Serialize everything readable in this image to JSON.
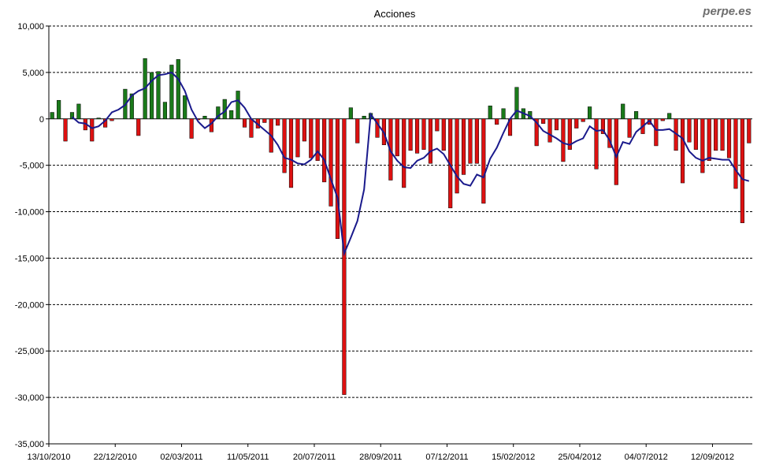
{
  "brand": "perpe.es",
  "chart_data": {
    "type": "bar",
    "title": "Acciones",
    "xlabel": "",
    "ylabel": "",
    "ylim": [
      -35000,
      10000
    ],
    "ytick_values": [
      10000,
      5000,
      0,
      -5000,
      -10000,
      -15000,
      -20000,
      -25000,
      -30000,
      -35000
    ],
    "ytick_labels": [
      "10,000",
      "5,000",
      "0",
      "-5,000",
      "-10,000",
      "-15,000",
      "-20,000",
      "-25,000",
      "-30,000",
      "-35,000"
    ],
    "xtick_labels": [
      "13/10/2010",
      "22/12/2010",
      "02/03/2011",
      "11/05/2011",
      "20/07/2011",
      "28/09/2011",
      "07/12/2011",
      "15/02/2012",
      "25/04/2012",
      "04/07/2012",
      "12/09/2012"
    ],
    "xtick_index": [
      0,
      10,
      20,
      30,
      40,
      50,
      60,
      70,
      80,
      90,
      100
    ],
    "grid": true,
    "legend": "none",
    "colors": {
      "positive": "#1a7a1a",
      "negative": "#dd1111",
      "line": "#1a1a8c",
      "grid": "#000000"
    },
    "series": [
      {
        "kind": "bar",
        "values": [
          700,
          2000,
          -2400,
          700,
          1600,
          -1200,
          -2400,
          100,
          -900,
          -200,
          0,
          3200,
          2700,
          -1800,
          6500,
          5000,
          5100,
          1800,
          5800,
          6400,
          2500,
          -2100,
          -100,
          300,
          -1400,
          1300,
          2100,
          900,
          3000,
          -900,
          -2000,
          -1000,
          -400,
          -3600,
          -700,
          -5800,
          -7400,
          -4100,
          -2400,
          -4200,
          -4500,
          -6800,
          -9400,
          -12900,
          -29700,
          1200,
          -2600,
          300,
          600,
          -2000,
          -2800,
          -6600,
          -4000,
          -7400,
          -3400,
          -3700,
          -3300,
          -4800,
          -1300,
          -3400,
          -9600,
          -8000,
          -6000,
          -4800,
          -4800,
          -9100,
          1400,
          -600,
          1100,
          -1800,
          3400,
          1100,
          800,
          -2900,
          -500,
          -2500,
          -1200,
          -4600,
          -3300,
          -1000,
          -300,
          1300,
          -5400,
          -1600,
          -3100,
          -7100,
          1600,
          -2000,
          800,
          -1600,
          -600,
          -2900,
          -200,
          600,
          -3400,
          -6900,
          -2500,
          -3300,
          -5800,
          -4500,
          -3400,
          -3400,
          -4200,
          -7500,
          -11200,
          -2600
        ]
      },
      {
        "kind": "line",
        "values": [
          null,
          null,
          null,
          200,
          -400,
          -500,
          -1000,
          -800,
          -200,
          700,
          1000,
          1500,
          2500,
          3000,
          3300,
          4100,
          4700,
          4800,
          5000,
          4300,
          3000,
          1000,
          -300,
          -1000,
          -500,
          300,
          800,
          1800,
          2000,
          1200,
          0,
          -600,
          -1200,
          -1800,
          -2800,
          -4200,
          -4400,
          -4800,
          -4900,
          -4400,
          -3500,
          -4400,
          -6500,
          -8500,
          -14500,
          -12800,
          -11000,
          -7600,
          500,
          -500,
          -1500,
          -3500,
          -4500,
          -5200,
          -5300,
          -4500,
          -4200,
          -3500,
          -3200,
          -3800,
          -5000,
          -6200,
          -7000,
          -7200,
          -6000,
          -6300,
          -4300,
          -3100,
          -1500,
          0,
          900,
          600,
          300,
          -400,
          -1300,
          -1700,
          -2100,
          -2600,
          -2800,
          -2400,
          -2100,
          -800,
          -1300,
          -1200,
          -2300,
          -4100,
          -2500,
          -2700,
          -1400,
          -800,
          -200,
          -1200,
          -1200,
          -1100,
          -1600,
          -2100,
          -3500,
          -4200,
          -4500,
          -4200,
          -4300,
          -4400,
          -4400,
          -5500,
          -6500,
          -6700
        ]
      }
    ]
  }
}
